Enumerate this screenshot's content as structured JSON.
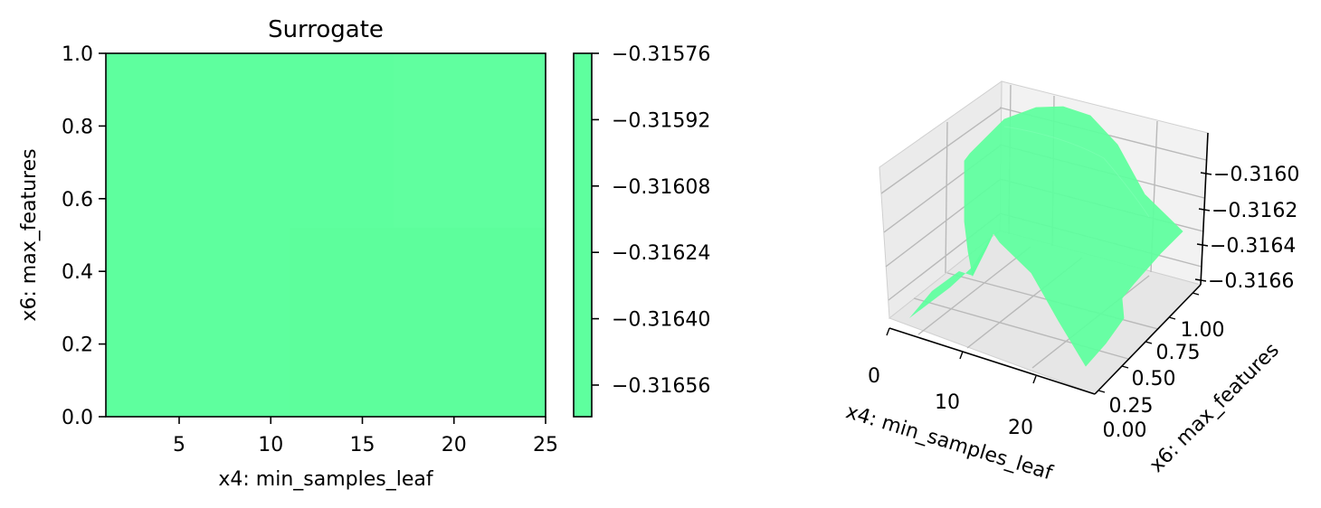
{
  "chart_data": [
    {
      "type": "heatmap",
      "title": "Surrogate",
      "xlabel": "x4: min_samples_leaf",
      "ylabel": "x6: max_features",
      "xlim": [
        1,
        25
      ],
      "ylim": [
        0.0,
        1.0
      ],
      "xticks": [
        "5",
        "10",
        "15",
        "20",
        "25"
      ],
      "yticks": [
        "0.0",
        "0.2",
        "0.4",
        "0.6",
        "0.8",
        "1.0"
      ],
      "fill_color": "#5eff9e",
      "colorbar": {
        "ticks": [
          "−0.31576",
          "−0.31592",
          "−0.31608",
          "−0.31624",
          "−0.31640",
          "−0.31656"
        ]
      }
    },
    {
      "type": "surface",
      "xlabel": "x4: min_samples_leaf",
      "ylabel": "x6: max_features",
      "xticks": [
        "0",
        "10",
        "20"
      ],
      "yticks": [
        "0.00",
        "0.25",
        "0.50",
        "0.75",
        "1.00"
      ],
      "zticks": [
        "−0.3160",
        "−0.3162",
        "−0.3164",
        "−0.3166"
      ],
      "surface_color": "#5eff9e"
    }
  ]
}
